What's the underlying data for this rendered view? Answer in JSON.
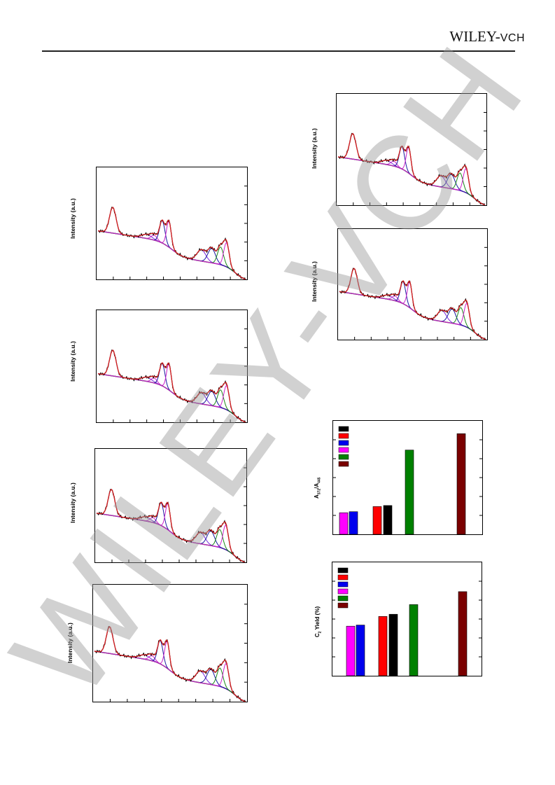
{
  "header": {
    "brand_main": "WILEY",
    "brand_sep": "-",
    "brand_sub": "VCH"
  },
  "colors": {
    "raw": "#000000",
    "envelope": "#d62020",
    "baseline": "#7a0a0a",
    "fit1": "#1a1aa0",
    "fit2": "#cc22cc",
    "fit3": "#1a8a1a",
    "fit4": "#7a2ae0"
  },
  "watermark_icon": "wiley-vch-watermark",
  "spectra": {
    "ylabel": "Intensity (a.u.)",
    "panels": [
      {
        "id": "spectrum-1"
      },
      {
        "id": "spectrum-2"
      },
      {
        "id": "spectrum-3"
      },
      {
        "id": "spectrum-4"
      },
      {
        "id": "spectrum-5"
      },
      {
        "id": "spectrum-6"
      }
    ]
  },
  "chart_data": [
    {
      "type": "bar",
      "ylabel_main": "A",
      "ylabel_sub1": "372",
      "ylabel_mid": "/A",
      "ylabel_sub2": "445",
      "legend_colors": [
        "#000000",
        "#ff0000",
        "#0000ee",
        "#ff00ff",
        "#008000",
        "#7a0000"
      ],
      "bars": [
        {
          "color": "#ff00ff",
          "value": 0.21
        },
        {
          "color": "#0000ee",
          "value": 0.22
        },
        {
          "color": "#ff0000",
          "value": 0.27
        },
        {
          "color": "#000000",
          "value": 0.28
        },
        {
          "color": "#008000",
          "value": 0.82
        },
        {
          "color": "#7a0000",
          "value": 0.98
        }
      ],
      "ylim": [
        0,
        1.05
      ]
    },
    {
      "type": "bar",
      "ylabel_main": "C",
      "ylabel_sub1": "2",
      "ylabel_mid": " Yield (%)",
      "legend_colors": [
        "#000000",
        "#ff0000",
        "#0000ee",
        "#ff00ff",
        "#008000",
        "#7a0000"
      ],
      "bars": [
        {
          "color": "#ff00ff",
          "value": 0.46
        },
        {
          "color": "#0000ee",
          "value": 0.47
        },
        {
          "color": "#ff0000",
          "value": 0.55
        },
        {
          "color": "#000000",
          "value": 0.57
        },
        {
          "color": "#008000",
          "value": 0.66
        },
        {
          "color": "#7a0000",
          "value": 0.78
        }
      ],
      "ylim": [
        0,
        1.0
      ]
    }
  ]
}
